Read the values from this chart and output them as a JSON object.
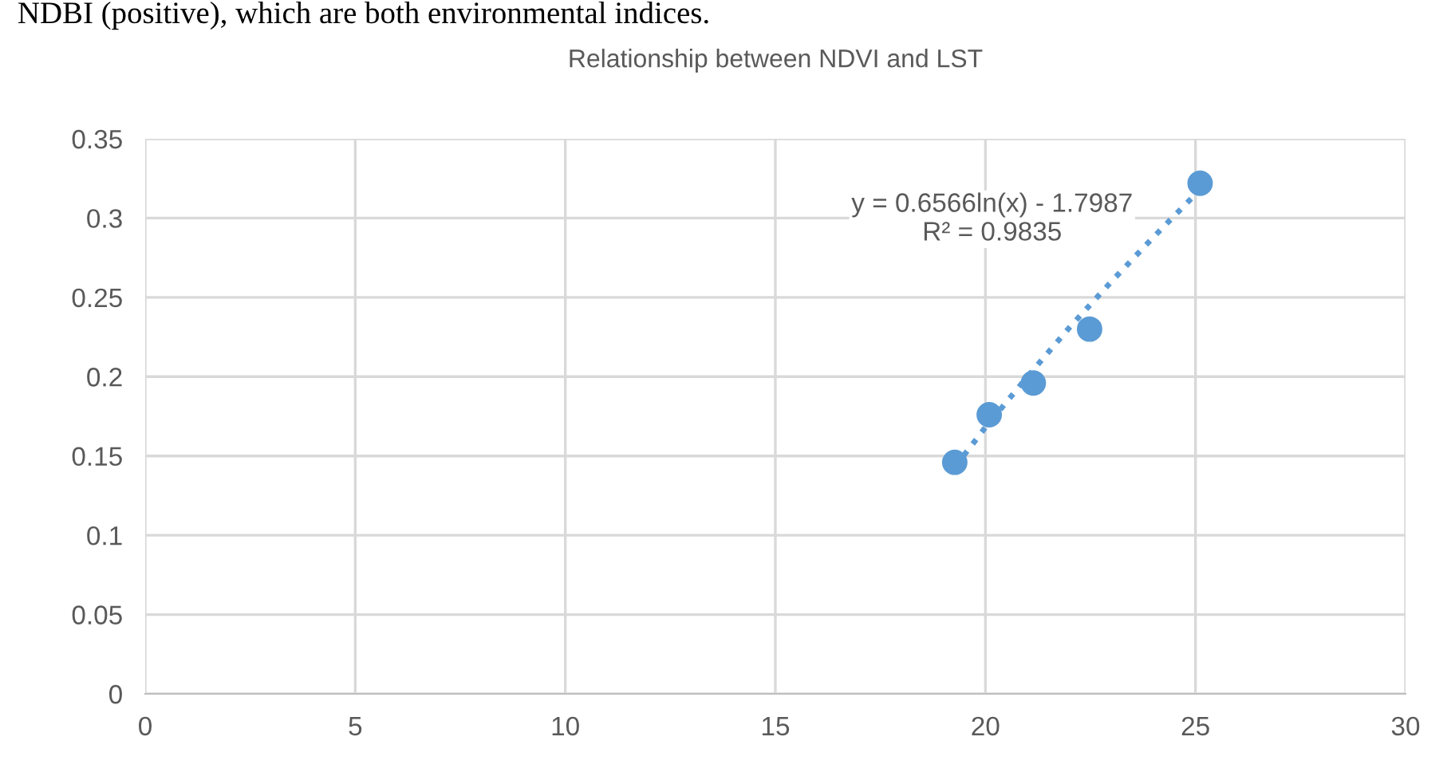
{
  "chart_data": {
    "type": "scatter",
    "title": "Relationship between NDVI and LST",
    "annotations": [
      "NDBI (positive), which are both environmental indices.",
      "y = 0.6566ln(x) - 1.7987\nR² = 0.9835"
    ],
    "series": [
      {
        "color": "#5b9bd5",
        "marker": "circle",
        "x": [
          19.27,
          20.09,
          21.14,
          22.48,
          25.11
        ],
        "values": [
          0.146,
          0.176,
          0.196,
          0.23,
          0.322
        ]
      },
      {
        "type": "line",
        "color": "#5b9bd5",
        "marker": "none",
        "line_style": "dotted",
        "x": [
          19.27,
          20,
          21,
          22,
          23,
          24,
          25.11
        ],
        "values": [
          0.143,
          0.168,
          0.2,
          0.231,
          0.26,
          0.288,
          0.318
        ]
      }
    ],
    "xlim": [
      0,
      30
    ],
    "xticks": [
      0,
      5,
      10,
      15,
      20,
      25,
      30
    ],
    "ylim": [
      0,
      0.35
    ],
    "yticks": [
      0,
      0.05,
      0.1,
      0.15,
      0.2,
      0.25,
      0.3,
      0.35
    ],
    "grid": true,
    "legend": false
  }
}
